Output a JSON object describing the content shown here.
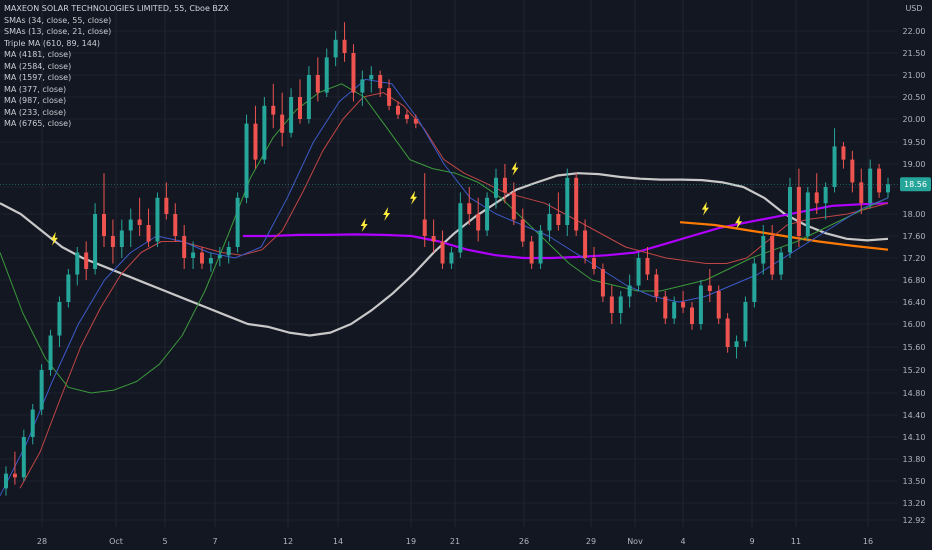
{
  "header": {
    "title": "MAXEON SOLAR TECHNOLOGIES LIMITED, 55, Cboe BZX",
    "currency": "USD"
  },
  "indicators": [
    "SMAs (34, close, 55, close)",
    "SMAs (13, close, 21, close)",
    "Triple MA (610, 89, 144)",
    "MA (4181, close)",
    "MA (2584, close)",
    "MA (1597, close)",
    "MA (377, close)",
    "MA (987, close)",
    "MA (233, close)",
    "MA (6765, close)"
  ],
  "colors": {
    "background": "#131722",
    "grid": "#2a2e39",
    "up": "#26a69a",
    "down": "#ef5350",
    "ma_white": "#c8c8c8",
    "ma_purple": "#b000ff",
    "ma_orange": "#ff7a00",
    "ma_red": "#d94b4b",
    "ma_green": "#3c9a3c",
    "ma_blue": "#3050c8",
    "flash": "#ffeb3b",
    "price_badge": "#26a69a"
  },
  "chart_data": {
    "type": "candlestick",
    "y_axis": {
      "ticks": [
        "22.00",
        "21.50",
        "21.00",
        "20.50",
        "20.00",
        "19.50",
        "19.00",
        "18.50",
        "18.00",
        "17.60",
        "17.20",
        "16.80",
        "16.40",
        "16.00",
        "15.60",
        "15.20",
        "14.80",
        "14.40",
        "14.10",
        "13.80",
        "13.50",
        "13.20",
        "12.92"
      ]
    },
    "x_axis": {
      "labels": [
        "28",
        "Oct",
        "5",
        "7",
        "12",
        "14",
        "19",
        "21",
        "26",
        "29",
        "Nov",
        "4",
        "9",
        "11",
        "16"
      ]
    },
    "last_price": "18.56",
    "candles": [
      {
        "o": 13.4,
        "h": 13.7,
        "l": 13.3,
        "c": 13.6
      },
      {
        "o": 13.6,
        "h": 13.9,
        "l": 13.45,
        "c": 13.55
      },
      {
        "o": 13.55,
        "h": 14.2,
        "l": 13.5,
        "c": 14.1
      },
      {
        "o": 14.1,
        "h": 14.6,
        "l": 14.0,
        "c": 14.5
      },
      {
        "o": 14.5,
        "h": 15.3,
        "l": 14.4,
        "c": 15.2
      },
      {
        "o": 15.2,
        "h": 15.9,
        "l": 15.1,
        "c": 15.8
      },
      {
        "o": 15.8,
        "h": 16.5,
        "l": 15.6,
        "c": 16.4
      },
      {
        "o": 16.4,
        "h": 17.0,
        "l": 16.3,
        "c": 16.9
      },
      {
        "o": 16.9,
        "h": 17.4,
        "l": 16.7,
        "c": 17.3
      },
      {
        "o": 17.3,
        "h": 17.5,
        "l": 16.8,
        "c": 17.0
      },
      {
        "o": 17.0,
        "h": 18.2,
        "l": 16.9,
        "c": 18.0
      },
      {
        "o": 18.0,
        "h": 18.8,
        "l": 17.4,
        "c": 17.6
      },
      {
        "o": 17.6,
        "h": 17.9,
        "l": 17.1,
        "c": 17.4
      },
      {
        "o": 17.4,
        "h": 17.9,
        "l": 17.2,
        "c": 17.7
      },
      {
        "o": 17.7,
        "h": 18.1,
        "l": 17.4,
        "c": 17.9
      },
      {
        "o": 17.9,
        "h": 18.3,
        "l": 17.6,
        "c": 17.8
      },
      {
        "o": 17.8,
        "h": 18.1,
        "l": 17.4,
        "c": 17.5
      },
      {
        "o": 17.5,
        "h": 18.4,
        "l": 17.4,
        "c": 18.3
      },
      {
        "o": 18.3,
        "h": 18.6,
        "l": 17.9,
        "c": 18.0
      },
      {
        "o": 18.0,
        "h": 18.2,
        "l": 17.5,
        "c": 17.6
      },
      {
        "o": 17.6,
        "h": 17.8,
        "l": 17.0,
        "c": 17.2
      },
      {
        "o": 17.2,
        "h": 17.5,
        "l": 17.0,
        "c": 17.3
      },
      {
        "o": 17.3,
        "h": 17.4,
        "l": 17.0,
        "c": 17.1
      },
      {
        "o": 17.1,
        "h": 17.3,
        "l": 16.95,
        "c": 17.2
      },
      {
        "o": 17.2,
        "h": 17.4,
        "l": 17.05,
        "c": 17.25
      },
      {
        "o": 17.25,
        "h": 17.5,
        "l": 17.1,
        "c": 17.4
      },
      {
        "o": 17.4,
        "h": 18.4,
        "l": 17.3,
        "c": 18.3
      },
      {
        "o": 18.3,
        "h": 20.1,
        "l": 18.2,
        "c": 19.9
      },
      {
        "o": 19.9,
        "h": 20.3,
        "l": 18.9,
        "c": 19.1
      },
      {
        "o": 19.1,
        "h": 20.5,
        "l": 19.0,
        "c": 20.3
      },
      {
        "o": 20.3,
        "h": 20.8,
        "l": 19.8,
        "c": 20.1
      },
      {
        "o": 20.1,
        "h": 20.6,
        "l": 19.4,
        "c": 19.7
      },
      {
        "o": 19.7,
        "h": 20.7,
        "l": 19.6,
        "c": 20.5
      },
      {
        "o": 20.5,
        "h": 20.9,
        "l": 19.9,
        "c": 20.0
      },
      {
        "o": 20.0,
        "h": 21.2,
        "l": 19.9,
        "c": 21.0
      },
      {
        "o": 21.0,
        "h": 21.4,
        "l": 20.4,
        "c": 20.6
      },
      {
        "o": 20.6,
        "h": 21.6,
        "l": 20.5,
        "c": 21.4
      },
      {
        "o": 21.4,
        "h": 22.0,
        "l": 21.2,
        "c": 21.8
      },
      {
        "o": 21.8,
        "h": 22.2,
        "l": 21.3,
        "c": 21.5
      },
      {
        "o": 21.5,
        "h": 21.7,
        "l": 20.4,
        "c": 20.6
      },
      {
        "o": 20.6,
        "h": 21.1,
        "l": 20.3,
        "c": 20.9
      },
      {
        "o": 20.9,
        "h": 21.2,
        "l": 20.6,
        "c": 21.0
      },
      {
        "o": 21.0,
        "h": 21.1,
        "l": 20.5,
        "c": 20.7
      },
      {
        "o": 20.7,
        "h": 20.9,
        "l": 20.2,
        "c": 20.3
      },
      {
        "o": 20.3,
        "h": 20.4,
        "l": 20.0,
        "c": 20.1
      },
      {
        "o": 20.1,
        "h": 20.2,
        "l": 19.9,
        "c": 20.0
      },
      {
        "o": 20.0,
        "h": 20.1,
        "l": 19.8,
        "c": 19.9
      },
      {
        "o": 17.9,
        "h": 18.8,
        "l": 17.4,
        "c": 17.6
      },
      {
        "o": 17.6,
        "h": 17.9,
        "l": 17.3,
        "c": 17.5
      },
      {
        "o": 17.5,
        "h": 17.7,
        "l": 17.0,
        "c": 17.1
      },
      {
        "o": 17.1,
        "h": 17.4,
        "l": 17.0,
        "c": 17.3
      },
      {
        "o": 17.3,
        "h": 18.4,
        "l": 17.2,
        "c": 18.2
      },
      {
        "o": 18.2,
        "h": 18.5,
        "l": 17.8,
        "c": 18.0
      },
      {
        "o": 18.0,
        "h": 18.3,
        "l": 17.5,
        "c": 17.7
      },
      {
        "o": 17.7,
        "h": 18.4,
        "l": 17.6,
        "c": 18.3
      },
      {
        "o": 18.3,
        "h": 18.9,
        "l": 18.1,
        "c": 18.7
      },
      {
        "o": 18.7,
        "h": 19.0,
        "l": 18.2,
        "c": 18.4
      },
      {
        "o": 18.4,
        "h": 18.6,
        "l": 17.8,
        "c": 17.9
      },
      {
        "o": 17.9,
        "h": 18.1,
        "l": 17.4,
        "c": 17.5
      },
      {
        "o": 17.5,
        "h": 17.6,
        "l": 17.0,
        "c": 17.1
      },
      {
        "o": 17.1,
        "h": 17.8,
        "l": 17.0,
        "c": 17.7
      },
      {
        "o": 17.7,
        "h": 18.2,
        "l": 17.5,
        "c": 18.0
      },
      {
        "o": 18.0,
        "h": 18.4,
        "l": 17.7,
        "c": 17.8
      },
      {
        "o": 17.8,
        "h": 18.9,
        "l": 17.6,
        "c": 18.7
      },
      {
        "o": 18.7,
        "h": 18.8,
        "l": 17.6,
        "c": 17.7
      },
      {
        "o": 17.7,
        "h": 17.9,
        "l": 17.1,
        "c": 17.2
      },
      {
        "o": 17.2,
        "h": 17.4,
        "l": 16.9,
        "c": 17.0
      },
      {
        "o": 17.0,
        "h": 17.1,
        "l": 16.4,
        "c": 16.5
      },
      {
        "o": 16.5,
        "h": 16.7,
        "l": 16.0,
        "c": 16.2
      },
      {
        "o": 16.2,
        "h": 16.6,
        "l": 16.0,
        "c": 16.5
      },
      {
        "o": 16.5,
        "h": 16.9,
        "l": 16.3,
        "c": 16.7
      },
      {
        "o": 16.7,
        "h": 17.3,
        "l": 16.6,
        "c": 17.2
      },
      {
        "o": 17.2,
        "h": 17.4,
        "l": 16.8,
        "c": 16.9
      },
      {
        "o": 16.9,
        "h": 17.0,
        "l": 16.4,
        "c": 16.5
      },
      {
        "o": 16.5,
        "h": 16.6,
        "l": 16.0,
        "c": 16.1
      },
      {
        "o": 16.1,
        "h": 16.5,
        "l": 16.0,
        "c": 16.4
      },
      {
        "o": 16.4,
        "h": 16.6,
        "l": 16.2,
        "c": 16.3
      },
      {
        "o": 16.3,
        "h": 16.4,
        "l": 15.9,
        "c": 16.0
      },
      {
        "o": 16.0,
        "h": 16.8,
        "l": 15.9,
        "c": 16.7
      },
      {
        "o": 16.7,
        "h": 17.0,
        "l": 16.4,
        "c": 16.6
      },
      {
        "o": 16.6,
        "h": 16.7,
        "l": 16.0,
        "c": 16.1
      },
      {
        "o": 16.1,
        "h": 16.2,
        "l": 15.5,
        "c": 15.6
      },
      {
        "o": 15.6,
        "h": 15.8,
        "l": 15.4,
        "c": 15.7
      },
      {
        "o": 15.7,
        "h": 16.5,
        "l": 15.6,
        "c": 16.4
      },
      {
        "o": 16.4,
        "h": 17.2,
        "l": 16.3,
        "c": 17.1
      },
      {
        "o": 17.1,
        "h": 17.8,
        "l": 16.9,
        "c": 17.6
      },
      {
        "o": 17.6,
        "h": 17.8,
        "l": 16.8,
        "c": 16.9
      },
      {
        "o": 16.9,
        "h": 17.4,
        "l": 16.8,
        "c": 17.3
      },
      {
        "o": 17.3,
        "h": 18.7,
        "l": 17.2,
        "c": 18.5
      },
      {
        "o": 18.5,
        "h": 18.9,
        "l": 17.4,
        "c": 17.6
      },
      {
        "o": 17.6,
        "h": 18.5,
        "l": 17.5,
        "c": 18.4
      },
      {
        "o": 18.4,
        "h": 18.8,
        "l": 18.0,
        "c": 18.2
      },
      {
        "o": 18.2,
        "h": 18.6,
        "l": 17.9,
        "c": 18.5
      },
      {
        "o": 18.5,
        "h": 19.8,
        "l": 18.4,
        "c": 19.4
      },
      {
        "o": 19.4,
        "h": 19.5,
        "l": 18.9,
        "c": 19.1
      },
      {
        "o": 19.1,
        "h": 19.3,
        "l": 18.4,
        "c": 18.6
      },
      {
        "o": 18.6,
        "h": 18.9,
        "l": 18.0,
        "c": 18.2
      },
      {
        "o": 18.2,
        "h": 19.1,
        "l": 18.1,
        "c": 18.9
      },
      {
        "o": 18.9,
        "h": 19.0,
        "l": 18.3,
        "c": 18.4
      },
      {
        "o": 18.4,
        "h": 18.7,
        "l": 18.3,
        "c": 18.56
      }
    ],
    "series": [
      {
        "color": "#c8c8c8",
        "width": 2.2,
        "values": [
          18.2,
          18.0,
          17.7,
          17.4,
          17.2,
          17.05,
          16.9,
          16.75,
          16.6,
          16.45,
          16.3,
          16.15,
          16.0,
          15.95,
          15.85,
          15.8,
          15.85,
          16.0,
          16.25,
          16.55,
          16.9,
          17.3,
          17.65,
          17.95,
          18.2,
          18.45,
          18.6,
          18.75,
          18.8,
          18.78,
          18.72,
          18.68,
          18.66,
          18.66,
          18.65,
          18.6,
          18.5,
          18.3,
          18.0,
          17.8,
          17.65,
          17.55,
          17.52,
          17.55
        ]
      },
      {
        "color": "#b000ff",
        "width": 2.2,
        "values": [
          17.6,
          17.6,
          17.62,
          17.62,
          17.63,
          17.62,
          17.6,
          17.5,
          17.35,
          17.25,
          17.2,
          17.2,
          17.22,
          17.25,
          17.3,
          17.45,
          17.6,
          17.75,
          17.85,
          17.95,
          18.05,
          18.15,
          18.18,
          18.2
        ]
      },
      {
        "color": "#ff7a00",
        "width": 2.2,
        "values": [
          17.85,
          17.8,
          17.7,
          17.6,
          17.5,
          17.42,
          17.35
        ]
      },
      {
        "color": "#c04545",
        "width": 1,
        "values": [
          13.4,
          13.9,
          14.7,
          15.6,
          16.3,
          16.9,
          17.3,
          17.5,
          17.5,
          17.4,
          17.3,
          17.25,
          17.35,
          17.7,
          18.4,
          19.3,
          20.0,
          20.5,
          20.6,
          20.3,
          19.8,
          19.1,
          18.8,
          18.6,
          18.4,
          18.3,
          18.2,
          18.0,
          17.8,
          17.6,
          17.4,
          17.3,
          17.2,
          17.15,
          17.1,
          17.1,
          17.2,
          17.5,
          17.8,
          17.9,
          17.95,
          18.0,
          18.1,
          18.2
        ]
      },
      {
        "color": "#3c9a3c",
        "width": 1,
        "values": [
          17.3,
          16.2,
          15.4,
          14.9,
          14.8,
          14.85,
          15.0,
          15.3,
          15.8,
          16.6,
          17.6,
          18.7,
          19.6,
          20.2,
          20.6,
          20.8,
          20.5,
          19.8,
          19.1,
          18.9,
          18.8,
          18.6,
          18.3,
          17.9,
          17.5,
          17.1,
          16.8,
          16.7,
          16.6,
          16.6,
          16.7,
          16.8,
          17.0,
          17.2,
          17.35,
          17.5,
          17.7,
          17.9,
          18.1,
          18.3
        ]
      },
      {
        "color": "#3c5ac8",
        "width": 1,
        "values": [
          13.3,
          14.0,
          15.0,
          16.0,
          16.8,
          17.3,
          17.6,
          17.5,
          17.3,
          17.2,
          17.4,
          18.3,
          19.5,
          20.4,
          20.9,
          20.8,
          20.0,
          19.0,
          18.3,
          18.0,
          17.8,
          17.6,
          17.3,
          17.0,
          16.7,
          16.5,
          16.4,
          16.5,
          16.7,
          16.9,
          17.2,
          17.5,
          17.8,
          18.1,
          18.3
        ]
      }
    ],
    "flash_positions": [
      [
        0.06,
        17.55
      ],
      [
        0.405,
        17.8
      ],
      [
        0.43,
        18.0
      ],
      [
        0.46,
        18.3
      ],
      [
        0.573,
        18.9
      ],
      [
        0.785,
        18.1
      ],
      [
        0.822,
        17.85
      ]
    ]
  }
}
